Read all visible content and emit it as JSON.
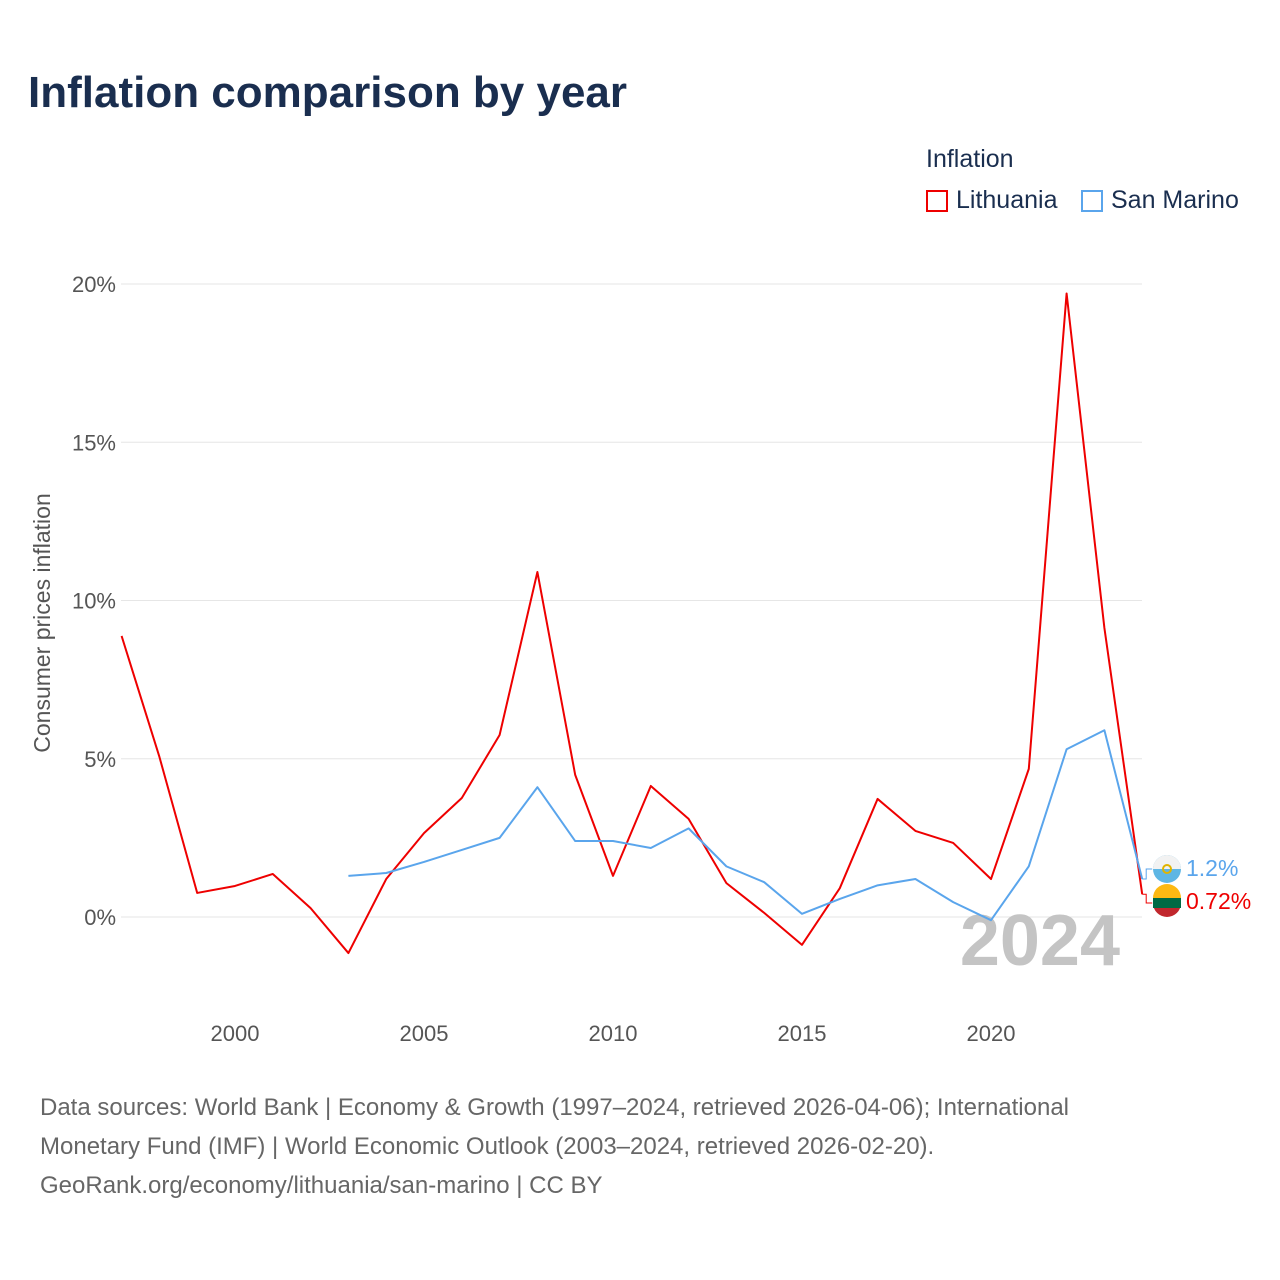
{
  "title": "Inflation comparison by year",
  "legend": {
    "title": "Inflation",
    "items": [
      {
        "label": "Lithuania",
        "color": "#ee0000"
      },
      {
        "label": "San Marino",
        "color": "#5aa5ec"
      }
    ]
  },
  "chart_data": {
    "type": "line",
    "title": "Inflation comparison by year",
    "xlabel": "",
    "ylabel": "Consumer prices inflation",
    "xlim": [
      1997,
      2024
    ],
    "ylim": [
      -3,
      21
    ],
    "yticks": [
      0,
      5,
      10,
      15,
      20
    ],
    "ytick_labels": [
      "0%",
      "5%",
      "10%",
      "15%",
      "20%"
    ],
    "xticks": [
      2000,
      2005,
      2010,
      2015,
      2020
    ],
    "xtick_labels": [
      "2000",
      "2005",
      "2010",
      "2015",
      "2020"
    ],
    "grid": true,
    "legend_position": "top-right",
    "year_watermark": "2024",
    "series": [
      {
        "name": "Lithuania",
        "color": "#ee0000",
        "end_label": "0.72%",
        "x": [
          1997,
          1998,
          1999,
          2000,
          2001,
          2002,
          2003,
          2004,
          2005,
          2006,
          2007,
          2008,
          2009,
          2010,
          2011,
          2012,
          2013,
          2014,
          2015,
          2016,
          2017,
          2018,
          2019,
          2020,
          2021,
          2022,
          2023,
          2024
        ],
        "values": [
          8.88,
          5.06,
          0.76,
          0.98,
          1.36,
          0.28,
          -1.14,
          1.2,
          2.65,
          3.76,
          5.75,
          10.9,
          4.49,
          1.3,
          4.14,
          3.1,
          1.07,
          0.13,
          -0.88,
          0.91,
          3.73,
          2.72,
          2.34,
          1.2,
          4.68,
          19.7,
          9.13,
          0.72
        ]
      },
      {
        "name": "San Marino",
        "color": "#5aa5ec",
        "end_label": "1.2%",
        "x": [
          2003,
          2004,
          2005,
          2006,
          2007,
          2008,
          2009,
          2010,
          2011,
          2012,
          2013,
          2014,
          2015,
          2016,
          2017,
          2018,
          2019,
          2020,
          2021,
          2022,
          2023,
          2024
        ],
        "values": [
          1.3,
          1.39,
          1.74,
          2.12,
          2.5,
          4.1,
          2.4,
          2.4,
          2.18,
          2.8,
          1.6,
          1.1,
          0.1,
          0.57,
          1.0,
          1.2,
          0.47,
          -0.1,
          1.6,
          5.3,
          5.9,
          1.2
        ]
      }
    ]
  },
  "footer": {
    "line1": "Data sources: World Bank | Economy & Growth (1997–2024, retrieved 2026-04-06); International",
    "line2": "Monetary Fund (IMF) | World Economic Outlook (2003–2024, retrieved 2026-02-20).",
    "line3": "GeoRank.org/economy/lithuania/san-marino | CC BY"
  }
}
